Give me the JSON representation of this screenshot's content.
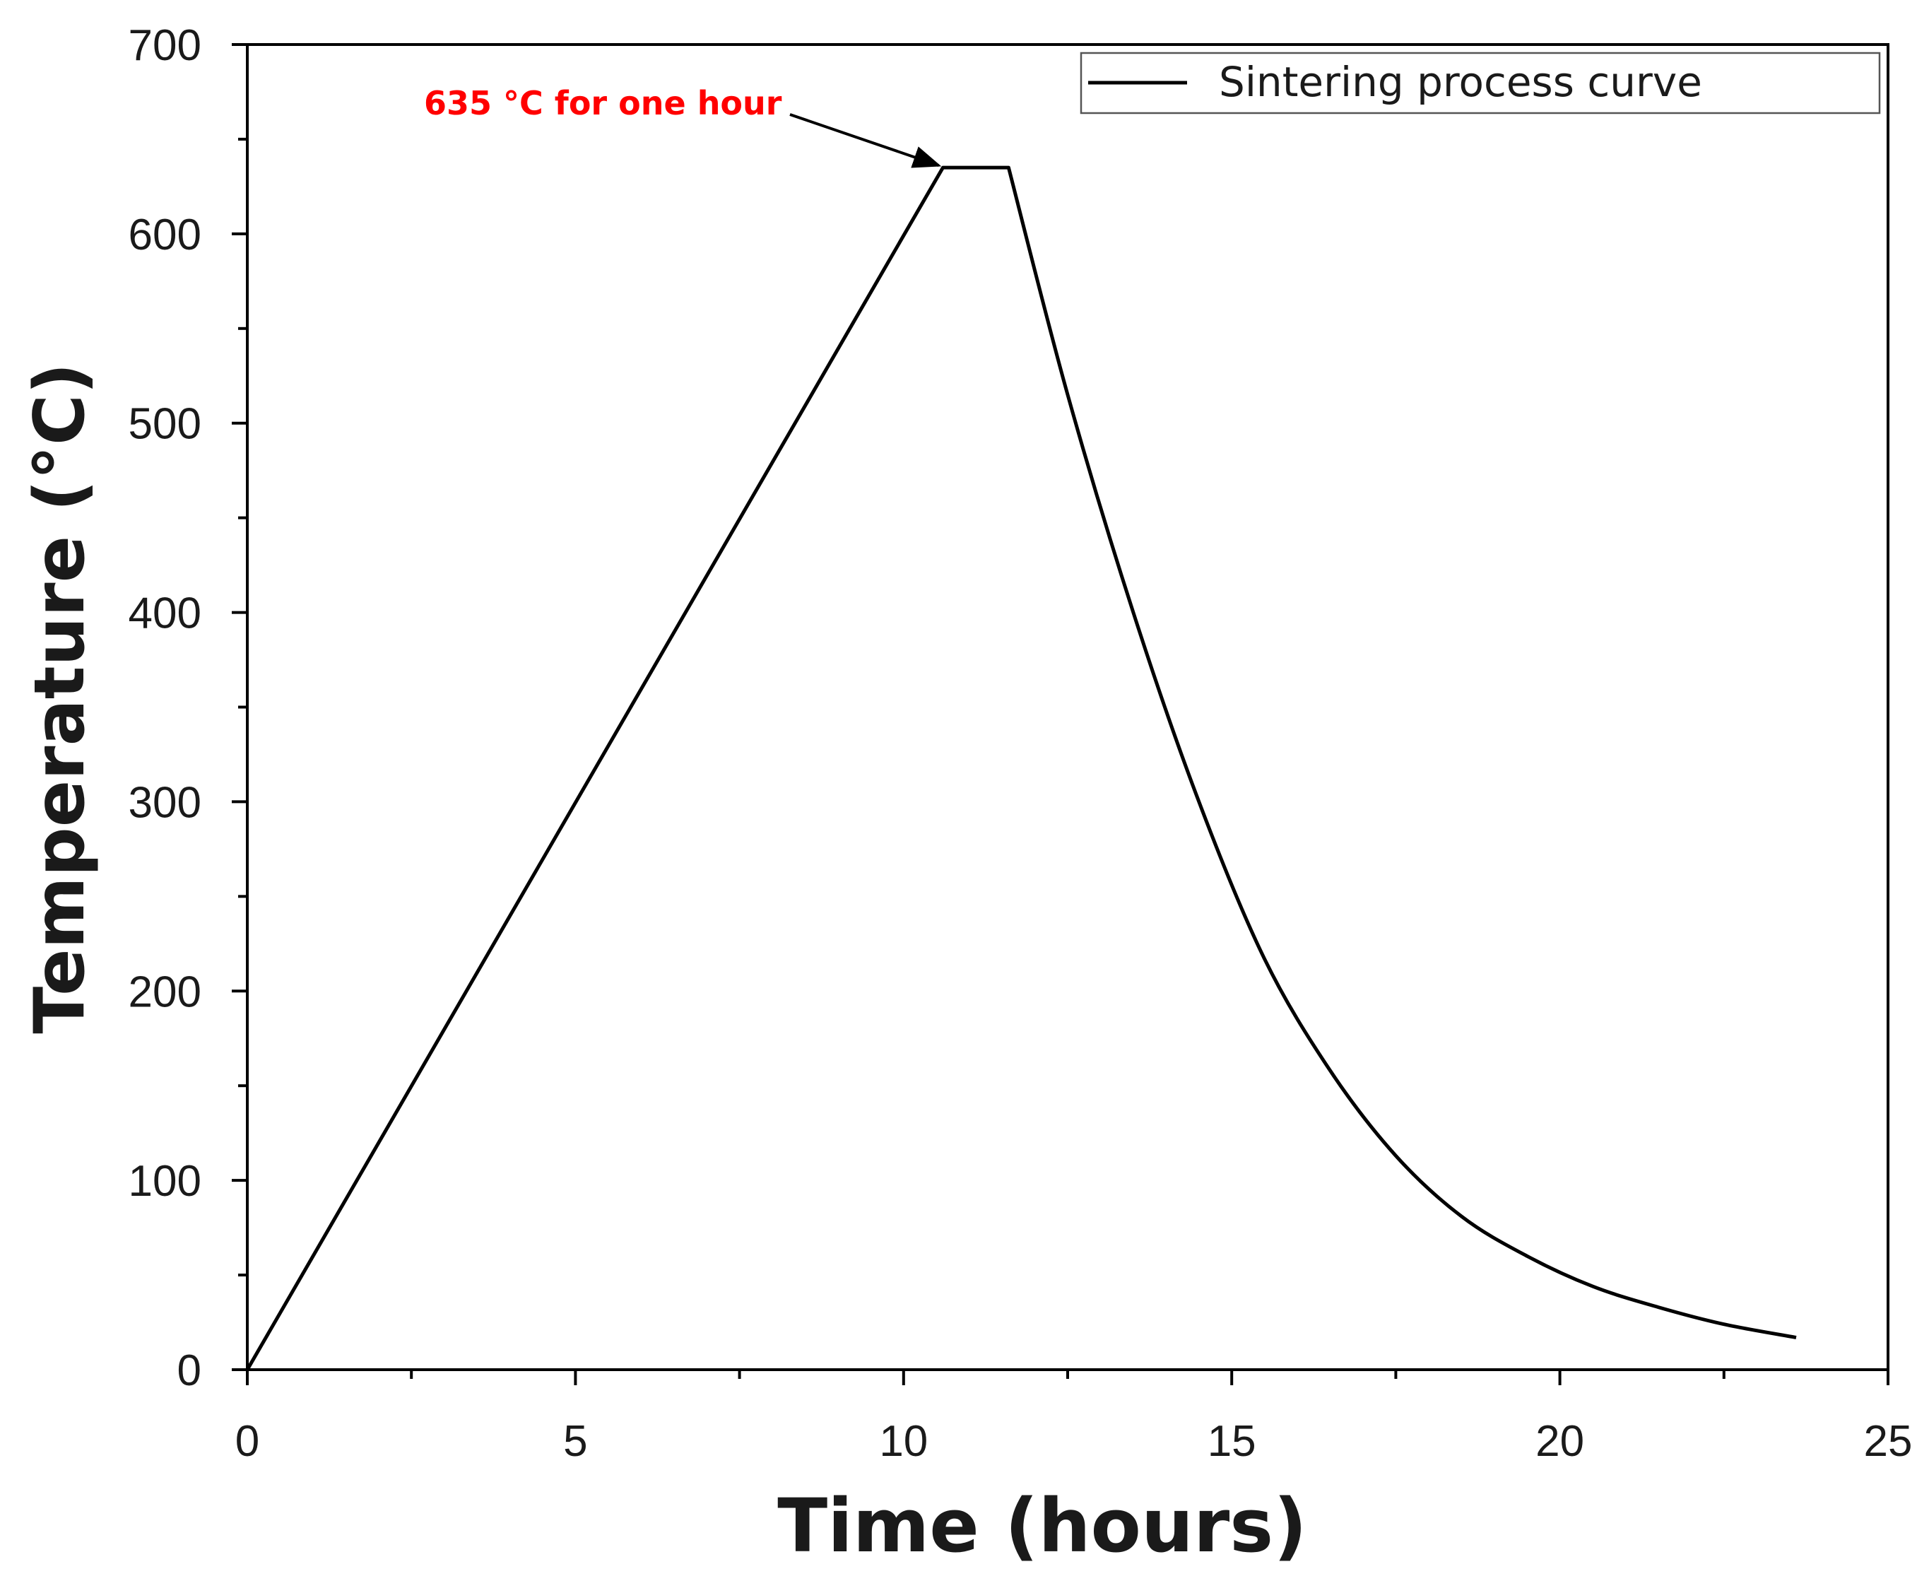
{
  "chart_data": {
    "type": "line",
    "xlabel": "Time (hours)",
    "ylabel": "Temperature (°C)",
    "xlim": [
      0,
      25
    ],
    "ylim": [
      0,
      700
    ],
    "x_ticks": [
      0,
      5,
      10,
      15,
      20,
      25
    ],
    "y_ticks": [
      0,
      100,
      200,
      300,
      400,
      500,
      600,
      700
    ],
    "grid": false,
    "legend_position": "top-right",
    "series": [
      {
        "name": "Sintering process curve",
        "color": "#000000",
        "x": [
          0,
          10.6,
          11.6,
          12.5,
          13.5,
          14.5,
          15.5,
          16.5,
          17.5,
          18.5,
          19.5,
          20.5,
          21.5,
          22.5,
          23.6
        ],
        "y": [
          0,
          635,
          635,
          515,
          400,
          300,
          217,
          158,
          113,
          81,
          60,
          44,
          33,
          24,
          17
        ]
      }
    ],
    "annotations": [
      {
        "text": "635 °C for one hour",
        "color": "#ff0000",
        "target_x": 10.6,
        "target_y": 635
      }
    ]
  }
}
